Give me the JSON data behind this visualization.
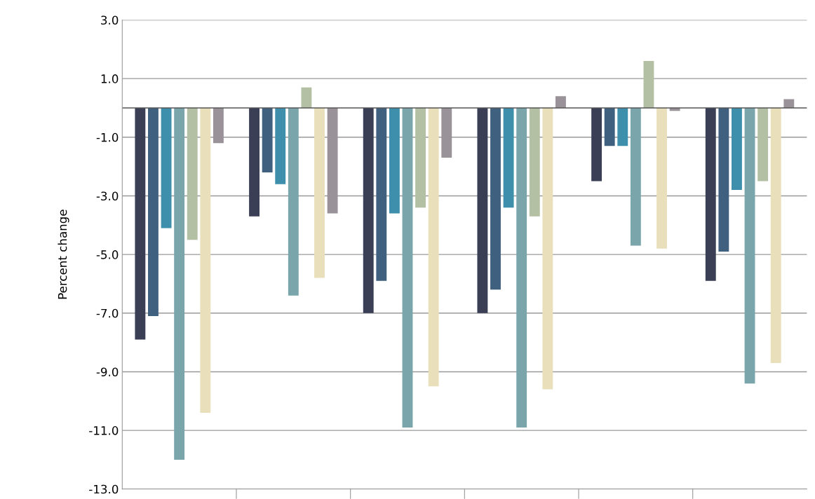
{
  "chart_data": {
    "type": "bar",
    "ylabel": "Percent change",
    "categories": [
      null,
      null,
      null,
      null,
      null,
      null
    ],
    "series": [
      {
        "color": "#3a3f55",
        "values": [
          -7.9,
          -3.7,
          -7.0,
          -7.0,
          -2.5,
          -5.9
        ]
      },
      {
        "color": "#40607f",
        "values": [
          -7.1,
          -2.2,
          -5.9,
          -6.2,
          -1.3,
          -4.9
        ]
      },
      {
        "color": "#3d8fac",
        "values": [
          -4.1,
          -2.6,
          -3.6,
          -3.4,
          -1.3,
          -2.8
        ]
      },
      {
        "color": "#7aa6ab",
        "values": [
          -12.0,
          -6.4,
          -10.9,
          -10.9,
          -4.7,
          -9.4
        ]
      },
      {
        "color": "#b4c0a4",
        "values": [
          -4.5,
          0.7,
          -3.4,
          -3.7,
          1.6,
          -2.5
        ]
      },
      {
        "color": "#e9e0bb",
        "values": [
          -10.4,
          -5.8,
          -9.5,
          -9.6,
          -4.8,
          -8.7
        ]
      },
      {
        "color": "#9a9299",
        "values": [
          -1.2,
          -3.6,
          -1.7,
          0.4,
          -0.1,
          0.3
        ]
      }
    ],
    "ylim": [
      -13.0,
      3.0
    ],
    "yticks": [
      {
        "value": 3.0,
        "label": "3.0"
      },
      {
        "value": 1.0,
        "label": "1.0"
      },
      {
        "value": -1.0,
        "label": "-1.0"
      },
      {
        "value": -3.0,
        "label": "-3.0"
      },
      {
        "value": -5.0,
        "label": "-5.0"
      },
      {
        "value": -7.0,
        "label": "-7.0"
      },
      {
        "value": -9.0,
        "label": "-9.0"
      },
      {
        "value": -11.0,
        "label": "-11.0"
      },
      {
        "value": -13.0,
        "label": "-13.0"
      }
    ],
    "grid": "y",
    "legend": false
  }
}
